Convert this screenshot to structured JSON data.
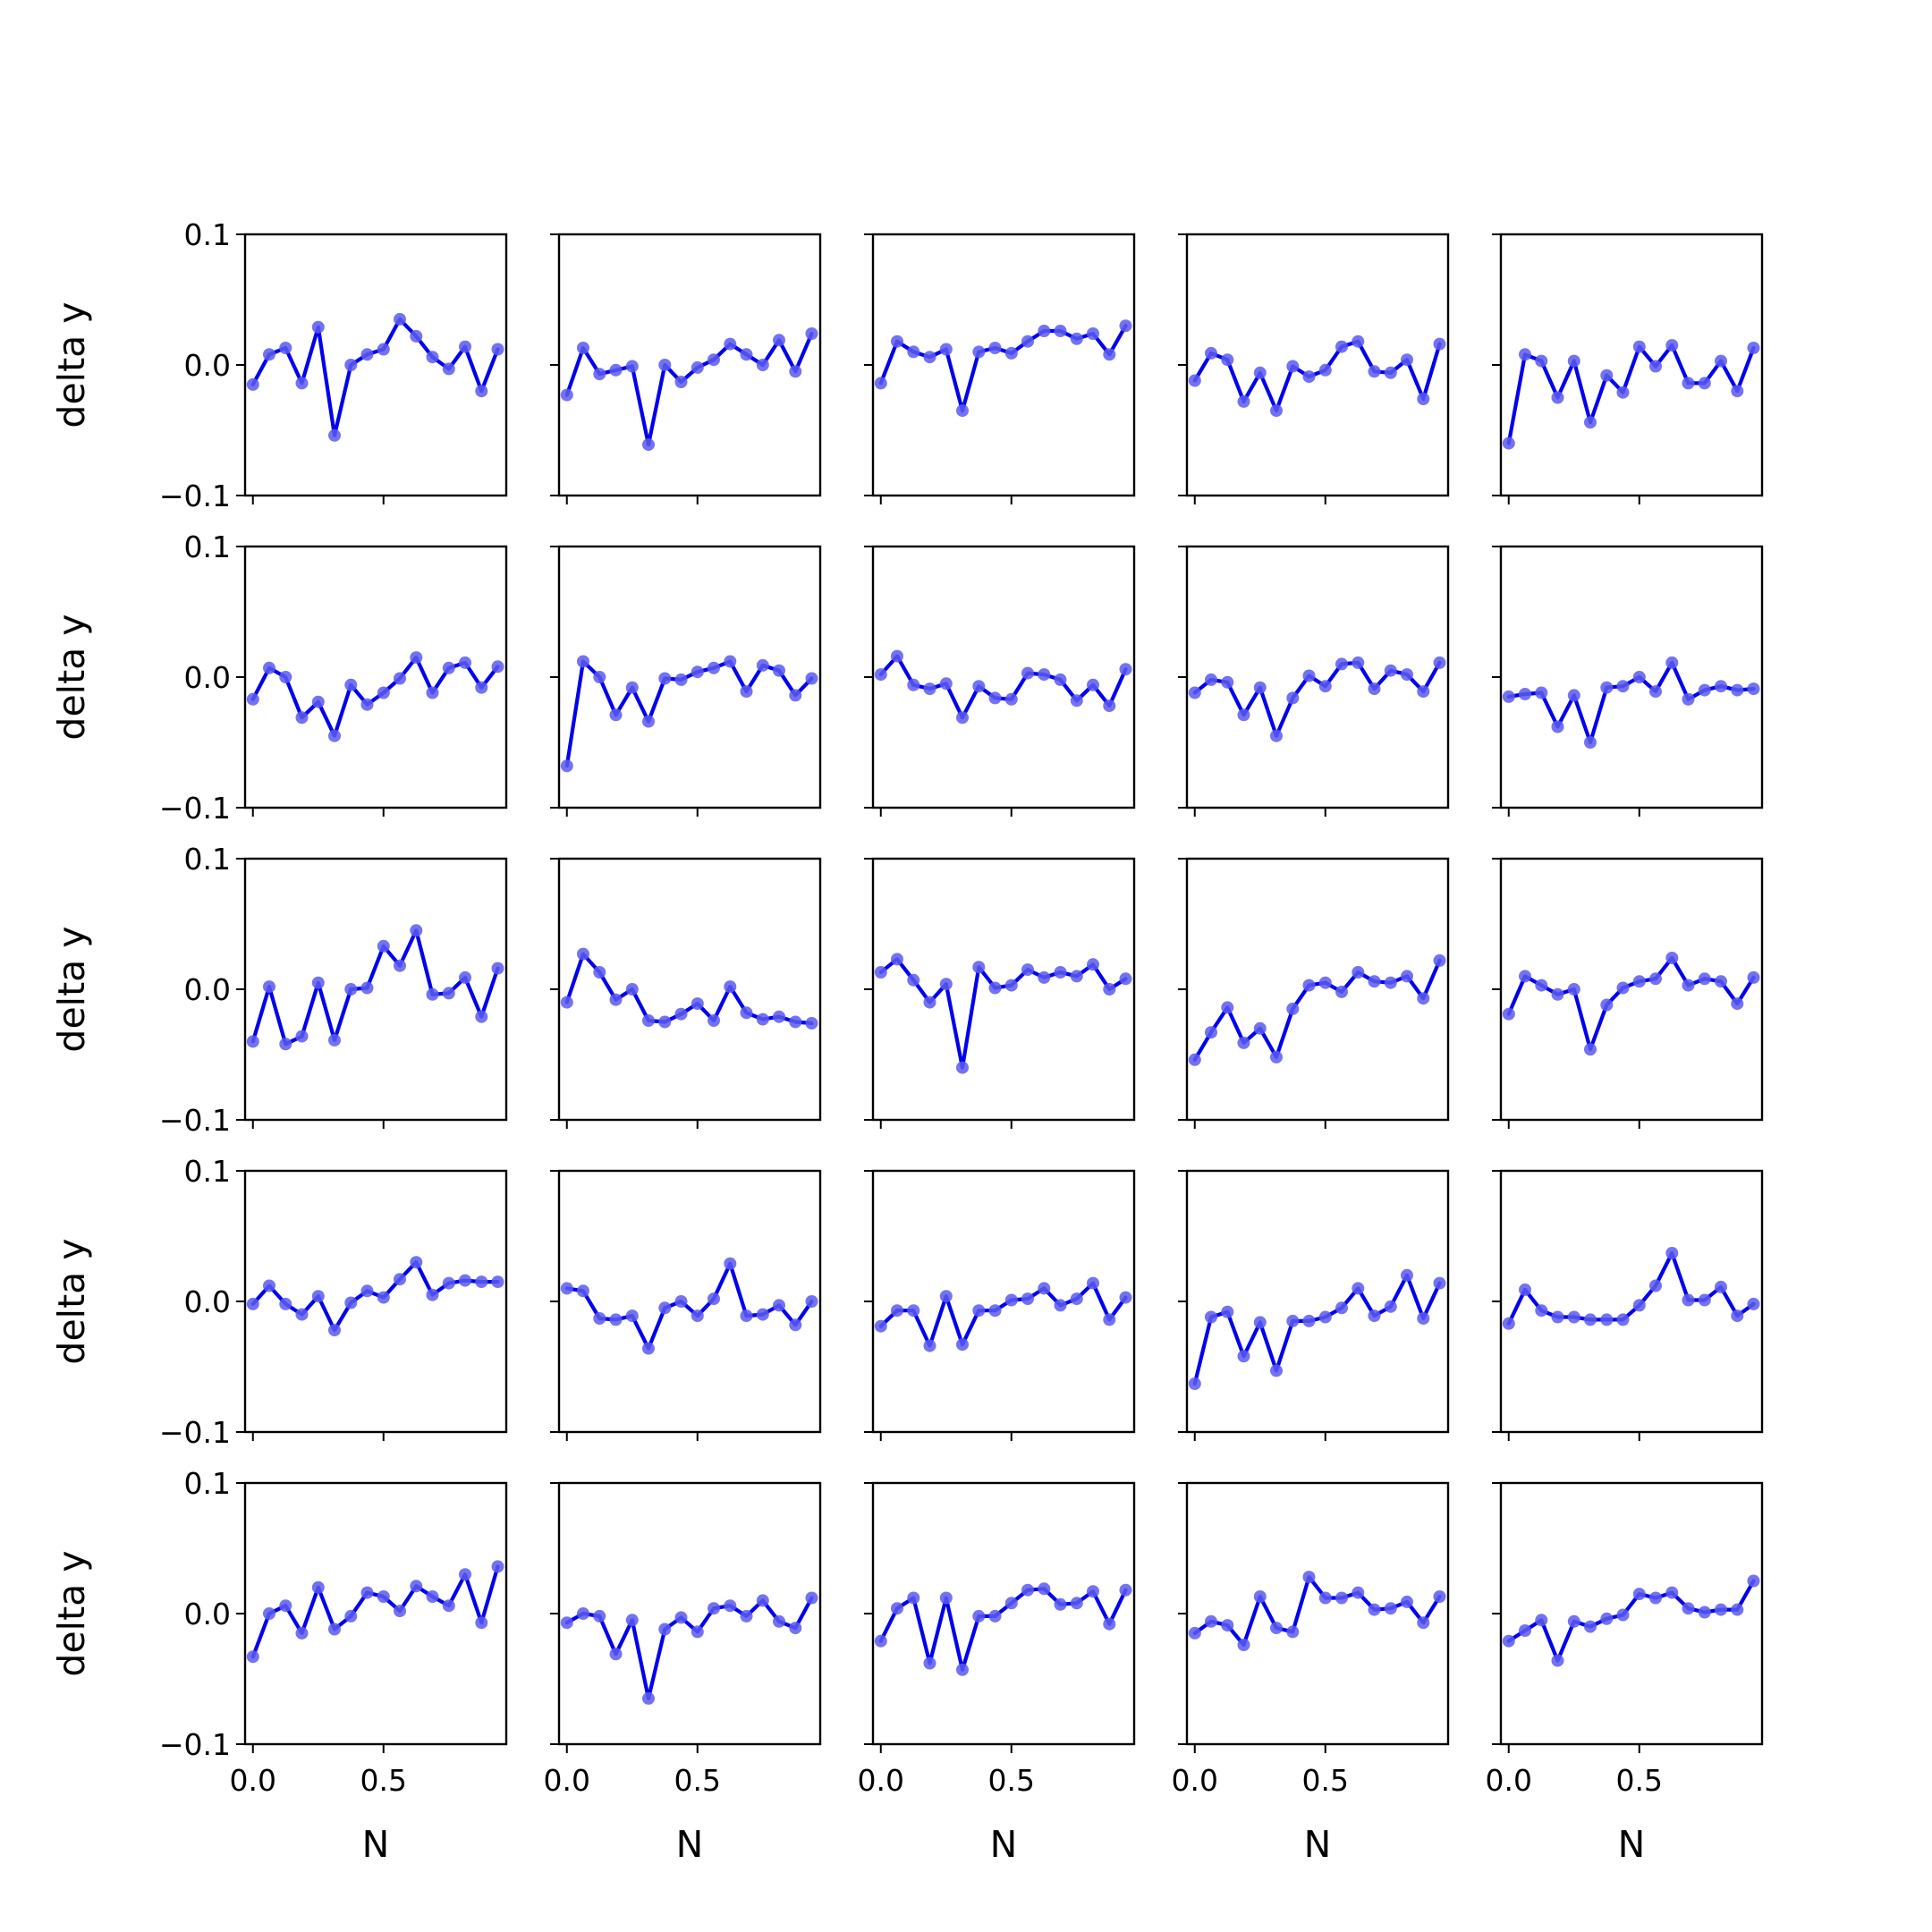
{
  "figure": {
    "xlabel": "N",
    "ylabel": "delta y",
    "line_color": "#0000ee",
    "marker_color": "#5a5af0",
    "x_tick_labels": [
      "0.0",
      "0.5"
    ],
    "y_tick_labels": [
      "0.1",
      "0.0",
      "−0.1"
    ]
  },
  "chart_data": {
    "type": "line",
    "grid": false,
    "rows": 5,
    "cols": 5,
    "xlabel": "N",
    "ylabel": "delta y",
    "xlim": [
      -0.03,
      0.97
    ],
    "ylim": [
      -0.1,
      0.1
    ],
    "x": [
      0.0,
      0.0625,
      0.125,
      0.1875,
      0.25,
      0.3125,
      0.375,
      0.4375,
      0.5,
      0.5625,
      0.625,
      0.6875,
      0.75,
      0.8125,
      0.875,
      0.9375
    ],
    "panels": [
      {
        "row": 0,
        "col": 0,
        "values": [
          -0.015,
          0.008,
          0.013,
          -0.014,
          0.029,
          -0.054,
          0.0,
          0.008,
          0.012,
          0.035,
          0.022,
          0.006,
          -0.003,
          0.014,
          -0.02,
          0.012
        ]
      },
      {
        "row": 0,
        "col": 1,
        "values": [
          -0.023,
          0.013,
          -0.007,
          -0.004,
          -0.001,
          -0.061,
          0.0,
          -0.013,
          -0.002,
          0.004,
          0.016,
          0.008,
          0.0,
          0.019,
          -0.005,
          0.024
        ]
      },
      {
        "row": 0,
        "col": 2,
        "values": [
          -0.014,
          0.018,
          0.01,
          0.006,
          0.012,
          -0.035,
          0.01,
          0.013,
          0.009,
          0.018,
          0.026,
          0.026,
          0.02,
          0.024,
          0.008,
          0.03
        ]
      },
      {
        "row": 0,
        "col": 3,
        "values": [
          -0.012,
          0.009,
          0.004,
          -0.028,
          -0.006,
          -0.035,
          -0.001,
          -0.009,
          -0.004,
          0.014,
          0.018,
          -0.005,
          -0.006,
          0.004,
          -0.026,
          0.016
        ]
      },
      {
        "row": 0,
        "col": 4,
        "values": [
          -0.06,
          0.008,
          0.003,
          -0.025,
          0.003,
          -0.044,
          -0.008,
          -0.021,
          0.014,
          -0.001,
          0.015,
          -0.014,
          -0.014,
          0.003,
          -0.02,
          0.013
        ]
      },
      {
        "row": 1,
        "col": 0,
        "values": [
          -0.017,
          0.007,
          0.0,
          -0.031,
          -0.019,
          -0.045,
          -0.006,
          -0.021,
          -0.012,
          -0.001,
          0.015,
          -0.012,
          0.007,
          0.011,
          -0.008,
          0.008
        ]
      },
      {
        "row": 1,
        "col": 1,
        "values": [
          -0.068,
          0.012,
          0.0,
          -0.029,
          -0.008,
          -0.034,
          -0.001,
          -0.002,
          0.004,
          0.007,
          0.012,
          -0.011,
          0.009,
          0.005,
          -0.014,
          -0.001
        ]
      },
      {
        "row": 1,
        "col": 2,
        "values": [
          0.002,
          0.016,
          -0.006,
          -0.009,
          -0.005,
          -0.031,
          -0.007,
          -0.016,
          -0.017,
          0.003,
          0.002,
          -0.002,
          -0.018,
          -0.006,
          -0.022,
          0.006
        ]
      },
      {
        "row": 1,
        "col": 3,
        "values": [
          -0.012,
          -0.002,
          -0.004,
          -0.029,
          -0.008,
          -0.045,
          -0.016,
          0.001,
          -0.007,
          0.01,
          0.011,
          -0.009,
          0.005,
          0.002,
          -0.011,
          0.011
        ]
      },
      {
        "row": 1,
        "col": 4,
        "values": [
          -0.015,
          -0.013,
          -0.012,
          -0.038,
          -0.014,
          -0.05,
          -0.008,
          -0.007,
          0.0,
          -0.011,
          0.011,
          -0.017,
          -0.01,
          -0.007,
          -0.01,
          -0.009
        ]
      },
      {
        "row": 2,
        "col": 0,
        "values": [
          -0.04,
          0.002,
          -0.042,
          -0.036,
          0.005,
          -0.039,
          0.0,
          0.001,
          0.033,
          0.018,
          0.045,
          -0.004,
          -0.003,
          0.009,
          -0.021,
          0.016
        ]
      },
      {
        "row": 2,
        "col": 1,
        "values": [
          -0.01,
          0.027,
          0.013,
          -0.008,
          0.0,
          -0.024,
          -0.025,
          -0.019,
          -0.011,
          -0.024,
          0.002,
          -0.018,
          -0.023,
          -0.021,
          -0.025,
          -0.026
        ]
      },
      {
        "row": 2,
        "col": 2,
        "values": [
          0.013,
          0.023,
          0.007,
          -0.01,
          0.004,
          -0.06,
          0.017,
          0.001,
          0.003,
          0.015,
          0.009,
          0.013,
          0.01,
          0.019,
          0.0,
          0.008
        ]
      },
      {
        "row": 2,
        "col": 3,
        "values": [
          -0.054,
          -0.033,
          -0.014,
          -0.041,
          -0.03,
          -0.052,
          -0.015,
          0.003,
          0.005,
          -0.002,
          0.013,
          0.006,
          0.005,
          0.01,
          -0.007,
          0.022
        ]
      },
      {
        "row": 2,
        "col": 4,
        "values": [
          -0.019,
          0.01,
          0.003,
          -0.004,
          0.0,
          -0.046,
          -0.012,
          0.001,
          0.006,
          0.008,
          0.024,
          0.003,
          0.008,
          0.006,
          -0.011,
          0.009
        ]
      },
      {
        "row": 3,
        "col": 0,
        "values": [
          -0.002,
          0.012,
          -0.002,
          -0.01,
          0.004,
          -0.022,
          -0.001,
          0.008,
          0.003,
          0.017,
          0.03,
          0.005,
          0.014,
          0.016,
          0.015,
          0.015
        ]
      },
      {
        "row": 3,
        "col": 1,
        "values": [
          0.01,
          0.008,
          -0.013,
          -0.014,
          -0.011,
          -0.036,
          -0.005,
          0.0,
          -0.011,
          0.002,
          0.029,
          -0.011,
          -0.01,
          -0.003,
          -0.018,
          0.0
        ]
      },
      {
        "row": 3,
        "col": 2,
        "values": [
          -0.019,
          -0.007,
          -0.007,
          -0.034,
          0.004,
          -0.033,
          -0.007,
          -0.007,
          0.001,
          0.002,
          0.01,
          -0.003,
          0.002,
          0.014,
          -0.014,
          0.003
        ]
      },
      {
        "row": 3,
        "col": 3,
        "values": [
          -0.063,
          -0.012,
          -0.008,
          -0.042,
          -0.016,
          -0.053,
          -0.015,
          -0.015,
          -0.012,
          -0.005,
          0.01,
          -0.011,
          -0.004,
          0.02,
          -0.013,
          0.014
        ]
      },
      {
        "row": 3,
        "col": 4,
        "values": [
          -0.017,
          0.009,
          -0.007,
          -0.012,
          -0.012,
          -0.014,
          -0.014,
          -0.014,
          -0.003,
          0.012,
          0.037,
          0.001,
          0.001,
          0.011,
          -0.011,
          -0.002
        ]
      },
      {
        "row": 4,
        "col": 0,
        "values": [
          -0.033,
          0.0,
          0.006,
          -0.015,
          0.02,
          -0.012,
          -0.002,
          0.016,
          0.013,
          0.002,
          0.021,
          0.013,
          0.006,
          0.03,
          -0.007,
          0.036
        ]
      },
      {
        "row": 4,
        "col": 1,
        "values": [
          -0.007,
          0.0,
          -0.002,
          -0.031,
          -0.005,
          -0.065,
          -0.012,
          -0.003,
          -0.014,
          0.004,
          0.006,
          -0.002,
          0.01,
          -0.006,
          -0.011,
          0.012
        ]
      },
      {
        "row": 4,
        "col": 2,
        "values": [
          -0.021,
          0.004,
          0.012,
          -0.038,
          0.012,
          -0.043,
          -0.002,
          -0.002,
          0.008,
          0.018,
          0.019,
          0.007,
          0.008,
          0.017,
          -0.008,
          0.018
        ]
      },
      {
        "row": 4,
        "col": 3,
        "values": [
          -0.015,
          -0.006,
          -0.009,
          -0.024,
          0.013,
          -0.011,
          -0.014,
          0.028,
          0.012,
          0.012,
          0.016,
          0.003,
          0.004,
          0.009,
          -0.007,
          0.013
        ]
      },
      {
        "row": 4,
        "col": 4,
        "values": [
          -0.021,
          -0.013,
          -0.005,
          -0.036,
          -0.006,
          -0.01,
          -0.004,
          -0.001,
          0.015,
          0.012,
          0.016,
          0.004,
          0.001,
          0.003,
          0.003,
          0.025
        ]
      }
    ]
  }
}
